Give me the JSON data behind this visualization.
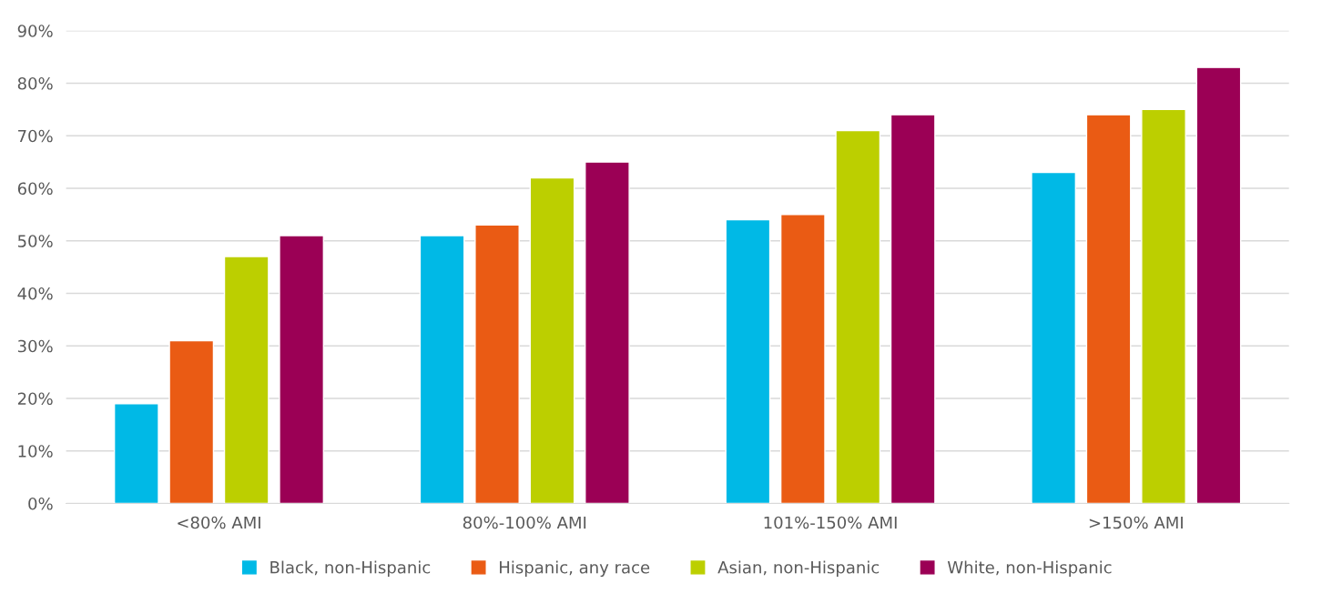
{
  "chart_data": {
    "type": "bar",
    "categories": [
      "<80% AMI",
      "80%-100% AMI",
      "101%-150% AMI",
      ">150% AMI"
    ],
    "series": [
      {
        "name": "Black, non-Hispanic",
        "color": "#00b9e6",
        "values": [
          19,
          51,
          54,
          63
        ]
      },
      {
        "name": "Hispanic, any race",
        "color": "#ea5b14",
        "values": [
          31,
          53,
          55,
          74
        ]
      },
      {
        "name": "Asian, non-Hispanic",
        "color": "#bccf00",
        "values": [
          47,
          62,
          71,
          75
        ]
      },
      {
        "name": "White, non-Hispanic",
        "color": "#9b0055",
        "values": [
          51,
          65,
          74,
          83
        ]
      }
    ],
    "ylim": [
      0,
      90
    ],
    "yticks": [
      {
        "value": 0,
        "label": "0%"
      },
      {
        "value": 10,
        "label": "10%"
      },
      {
        "value": 20,
        "label": "20%"
      },
      {
        "value": 30,
        "label": "30%"
      },
      {
        "value": 40,
        "label": "40%"
      },
      {
        "value": 50,
        "label": "50%"
      },
      {
        "value": 60,
        "label": "60%"
      },
      {
        "value": 70,
        "label": "70%"
      },
      {
        "value": 80,
        "label": "80%"
      },
      {
        "value": 90,
        "label": "90%"
      }
    ],
    "grid": "y",
    "legend": "bottom"
  }
}
